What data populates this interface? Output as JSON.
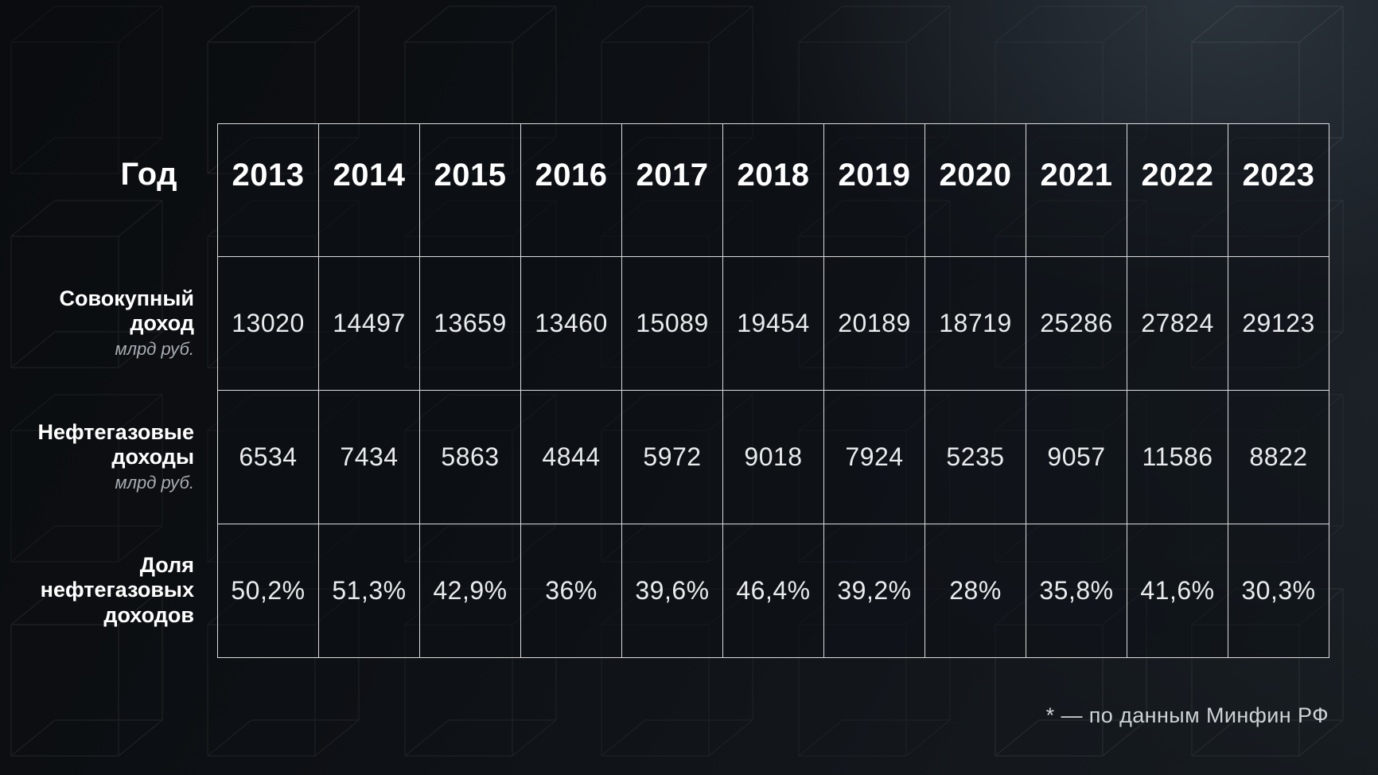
{
  "colors": {
    "background": "#0d1014",
    "cell_fill": "#191e23",
    "grid_line": "#d3d7da",
    "heading_text": "#ffffff",
    "value_text": "#e9ebed",
    "unit_text": "#a7adb3",
    "footer_text": "#ced3d7"
  },
  "table": {
    "year_header": "Год",
    "years": [
      "2013",
      "2014",
      "2015",
      "2016",
      "2017",
      "2018",
      "2019",
      "2020",
      "2021",
      "2022",
      "2023"
    ],
    "rows": [
      {
        "label_lines": [
          "Совокупный",
          "доход"
        ],
        "unit": "млрд руб.",
        "values": [
          "13020",
          "14497",
          "13659",
          "13460",
          "15089",
          "19454",
          "20189",
          "18719",
          "25286",
          "27824",
          "29123"
        ]
      },
      {
        "label_lines": [
          "Нефтегазовые",
          "доходы"
        ],
        "unit": "млрд руб.",
        "values": [
          "6534",
          "7434",
          "5863",
          "4844",
          "5972",
          "9018",
          "7924",
          "5235",
          "9057",
          "11586",
          "8822"
        ]
      },
      {
        "label_lines": [
          "Доля",
          "нефтегазовых",
          "доходов"
        ],
        "unit": "",
        "values": [
          "50,2%",
          "51,3%",
          "42,9%",
          "36%",
          "39,6%",
          "46,4%",
          "39,2%",
          "28%",
          "35,8%",
          "41,6%",
          "30,3%"
        ]
      }
    ]
  },
  "footer": {
    "note": "* — по данным Минфин РФ"
  },
  "chart_data": {
    "type": "table",
    "categories": [
      2013,
      2014,
      2015,
      2016,
      2017,
      2018,
      2019,
      2020,
      2021,
      2022,
      2023
    ],
    "series": [
      {
        "name": "Совокупный доход, млрд руб.",
        "values": [
          13020,
          14497,
          13659,
          13460,
          15089,
          19454,
          20189,
          18719,
          25286,
          27824,
          29123
        ]
      },
      {
        "name": "Нефтегазовые доходы, млрд руб.",
        "values": [
          6534,
          7434,
          5863,
          4844,
          5972,
          9018,
          7924,
          5235,
          9057,
          11586,
          8822
        ]
      },
      {
        "name": "Доля нефтегазовых доходов, %",
        "values": [
          50.2,
          51.3,
          42.9,
          36,
          39.6,
          46.4,
          39.2,
          28,
          35.8,
          41.6,
          30.3
        ]
      }
    ],
    "source_note": "* — по данным Минфин РФ"
  }
}
